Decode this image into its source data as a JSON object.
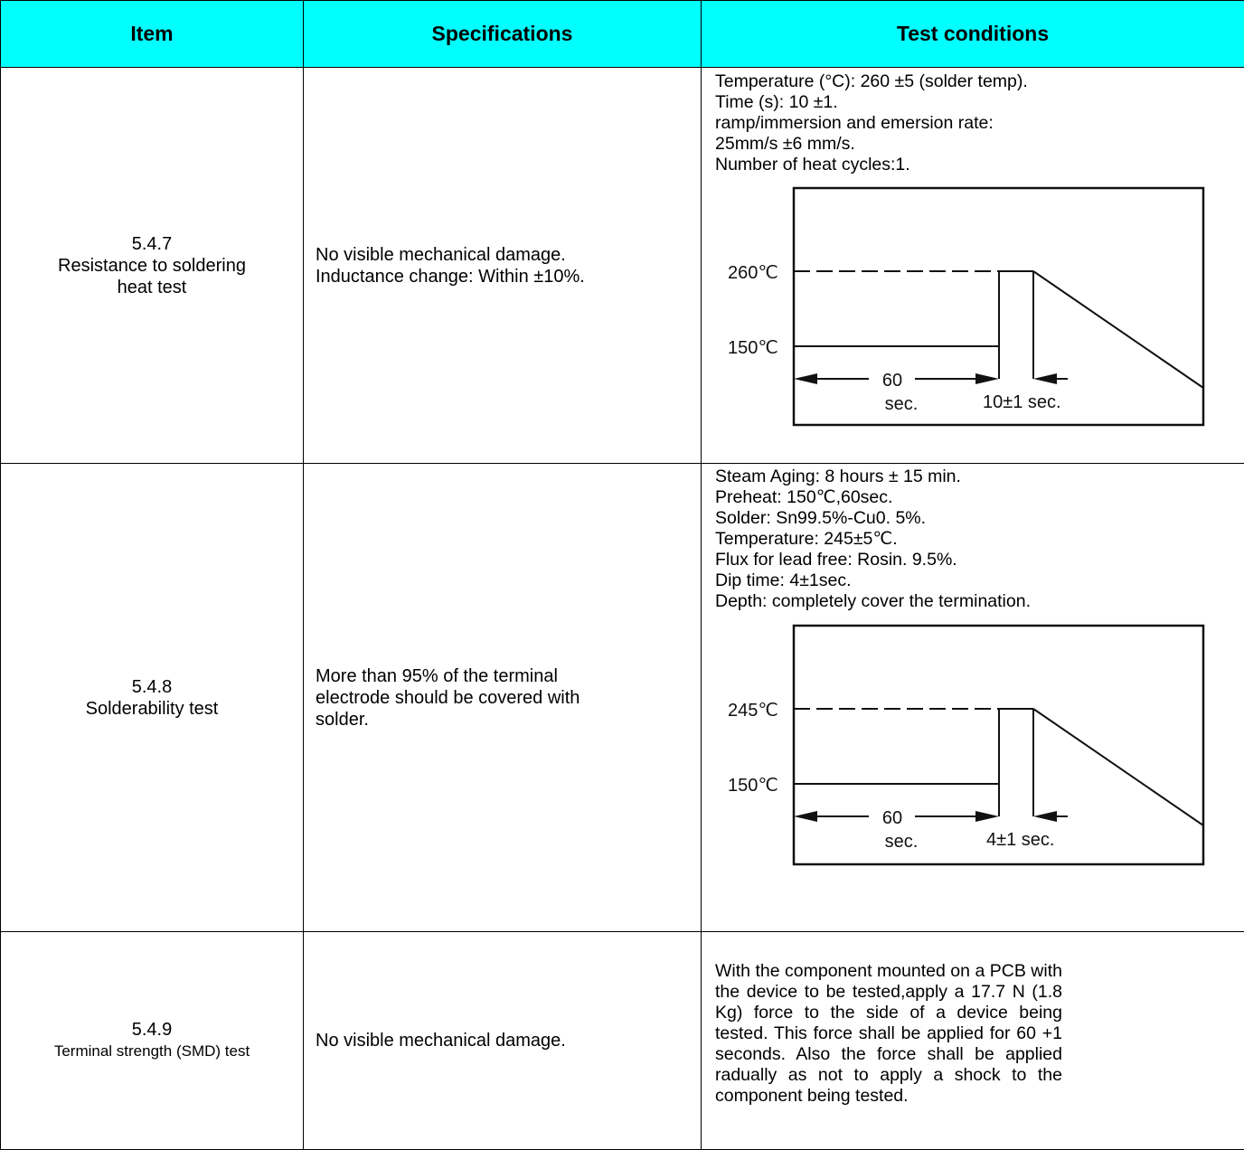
{
  "headers": {
    "item": "Item",
    "specifications": "Specifications",
    "test_conditions": "Test conditions"
  },
  "rows": [
    {
      "item_num": "5.4.7",
      "item_name_1": "Resistance to soldering",
      "item_name_2": "heat test",
      "spec_lines": [
        "No visible mechanical damage.",
        "Inductance change: Within ±10%."
      ],
      "test_lines": [
        "Temperature (°C): 260 ±5 (solder temp).",
        "Time (s): 10 ±1.",
        "ramp/immersion and emersion rate:",
        "25mm/s ±6 mm/s.",
        "Number of heat cycles:1."
      ],
      "diagram": {
        "peak_label": "260℃",
        "preheat_label": "150℃",
        "duration_value": "60",
        "duration_unit": "sec.",
        "dip_label": "10±1 sec."
      }
    },
    {
      "item_num": "5.4.8",
      "item_name_1": "Solderability test",
      "spec_lines": [
        "More than 95% of the terminal",
        "electrode should be covered with",
        "solder."
      ],
      "test_lines": [
        "Steam Aging: 8 hours ± 15 min.",
        "Preheat: 150℃,60sec.",
        "Solder: Sn99.5%-Cu0. 5%.",
        "Temperature: 245±5℃.",
        "Flux for lead free: Rosin. 9.5%.",
        "Dip time: 4±1sec.",
        "Depth: completely cover the termination."
      ],
      "diagram": {
        "peak_label": "245℃",
        "preheat_label": "150℃",
        "duration_value": "60",
        "duration_unit": "sec.",
        "dip_label": "4±1 sec."
      }
    },
    {
      "item_num": "5.4.9",
      "item_name_1": "Terminal strength (SMD) test",
      "spec_lines": [
        "No visible mechanical damage."
      ],
      "test_paragraph": "With the component mounted on a PCB with the device to be tested,apply a 17.7 N (1.8 Kg) force to the side of a device being tested. This force shall be applied for 60 +1 seconds. Also the force shall be applied radually as not to apply a shock to the component being tested."
    }
  ]
}
